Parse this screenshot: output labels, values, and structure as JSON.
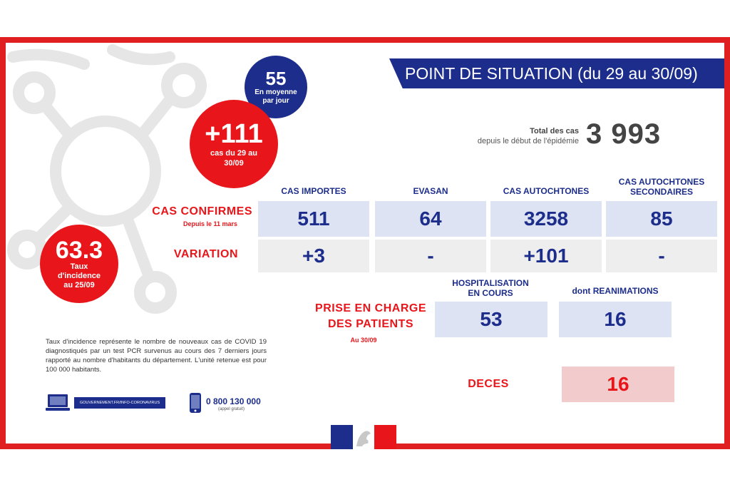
{
  "banner": {
    "title": "POINT DE SITUATION (du 29 au 30/09)"
  },
  "total": {
    "label_line1": "Total des cas",
    "label_line2": "depuis le début de l'épidémie",
    "value": "3 993"
  },
  "daily_average": {
    "value": "55",
    "label_line1": "En moyenne",
    "label_line2": "par jour"
  },
  "new_cases": {
    "value": "+111",
    "label_line1": "cas du 29 au",
    "label_line2": "30/09"
  },
  "incidence": {
    "value": "63.3",
    "label_line1": "Taux",
    "label_line2": "d'incidence",
    "label_line3": "au 25/09"
  },
  "table": {
    "columns": [
      {
        "line1": "CAS IMPORTES",
        "line2": ""
      },
      {
        "line1": "EVASAN",
        "line2": ""
      },
      {
        "line1": "CAS AUTOCHTONES",
        "line2": ""
      },
      {
        "line1": "CAS AUTOCHTONES",
        "line2": "SECONDAIRES"
      }
    ],
    "confirmed": {
      "label": "CAS CONFIRMES",
      "sub": "Depuis le 11 mars",
      "values": [
        "511",
        "64",
        "3258",
        "85"
      ]
    },
    "variation": {
      "label": "VARIATION",
      "values": [
        "+3",
        "-",
        "+101",
        "-"
      ]
    }
  },
  "care": {
    "label_line1": "PRISE EN CHARGE",
    "label_line2": "DES PATIENTS",
    "sub": "Au 30/09",
    "columns": [
      {
        "line1": "HOSPITALISATION",
        "line2": "EN COURS",
        "value": "53"
      },
      {
        "line1": "dont REANIMATIONS",
        "line2": "",
        "value": "16"
      }
    ]
  },
  "deaths": {
    "label": "DECES",
    "value": "16"
  },
  "footer": {
    "note": "Taux d'incidence représente le nombre de nouveaux cas de COVID 19 diagnostiqués par un test PCR survenus au cours des 7 derniers jours rapporté au nombre d'habitants du département. L'unité retenue est pour 100 000 habitants.",
    "url": "GOUVERNEMENT.FR/INFO-CORONAVIRUS",
    "phone": "0 800 130 000",
    "phone_sub": "(appel gratuit)"
  },
  "colors": {
    "red": "#e8161b",
    "blue": "#1c2d8c",
    "frame": "#e02020"
  },
  "icons": [
    "computer-icon",
    "phone-icon",
    "marianne-logo"
  ]
}
